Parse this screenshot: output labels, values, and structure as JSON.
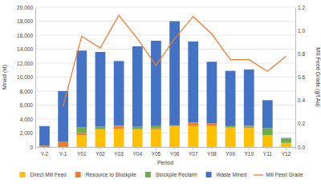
{
  "chart_data": {
    "type": "bar",
    "stacked": true,
    "grid": true,
    "legend": "bottom",
    "x_label": "Period",
    "y_label": "Mined (kt)",
    "y2_label": "Mill Feed Grade (g/t Au)",
    "categories": [
      "Y-2",
      "Y-1",
      "Y01",
      "Y02",
      "Y03",
      "Y04",
      "Y05",
      "Y06",
      "Y07",
      "Y08",
      "Y09",
      "Y10",
      "Y11",
      "Y12"
    ],
    "ylim": [
      0,
      20000
    ],
    "yticks": [
      0,
      {
        "value": 2000,
        "label": "2,000"
      },
      {
        "value": 4000,
        "label": "4,000"
      },
      {
        "value": 6000,
        "label": "6,000"
      },
      {
        "value": 8000,
        "label": "8,000"
      },
      {
        "value": 10000,
        "label": "10,000"
      },
      {
        "value": 12000,
        "label": "12,000"
      },
      {
        "value": 14000,
        "label": "14,000"
      },
      {
        "value": 16000,
        "label": "16,000"
      },
      {
        "value": 18000,
        "label": "18,000"
      },
      {
        "value": 20000,
        "label": "20,000"
      }
    ],
    "y2lim": [
      0,
      1.2
    ],
    "y2ticks": [
      {
        "value": 0,
        "label": "0.0"
      },
      0.2,
      0.4,
      0.6,
      0.8,
      {
        "value": 1,
        "label": "1.0"
      },
      1.2
    ],
    "series": [
      {
        "name": "Direct Mill Feed",
        "type": "bar",
        "color": "#ffc000",
        "values": [
          0,
          0,
          1700,
          2500,
          2600,
          2500,
          2500,
          3000,
          3000,
          3000,
          2700,
          2700,
          1700,
          600
        ]
      },
      {
        "name": "Resource to Stockpile",
        "type": "bar",
        "color": "#ed7d31",
        "values": [
          200,
          800,
          300,
          100,
          400,
          100,
          200,
          100,
          500,
          400,
          100,
          200,
          0,
          0
        ]
      },
      {
        "name": "Stockpile Reclaim",
        "type": "bar",
        "color": "#70ad47",
        "values": [
          0,
          0,
          800,
          300,
          100,
          300,
          300,
          0,
          0,
          0,
          200,
          200,
          1000,
          600
        ]
      },
      {
        "name": "Waste Mined",
        "type": "bar",
        "color": "#4472c4",
        "values": [
          2800,
          7200,
          11000,
          10700,
          9200,
          11500,
          12200,
          14900,
          11600,
          8800,
          7900,
          8000,
          4000,
          100
        ]
      },
      {
        "name": "Mill Feed Grade",
        "type": "line",
        "axis": "y2",
        "color": "#ed7d31",
        "values": [
          null,
          0.35,
          0.95,
          0.85,
          1.13,
          0.93,
          0.7,
          0.93,
          1.12,
          0.97,
          0.75,
          0.75,
          0.65,
          0.78
        ]
      }
    ]
  }
}
